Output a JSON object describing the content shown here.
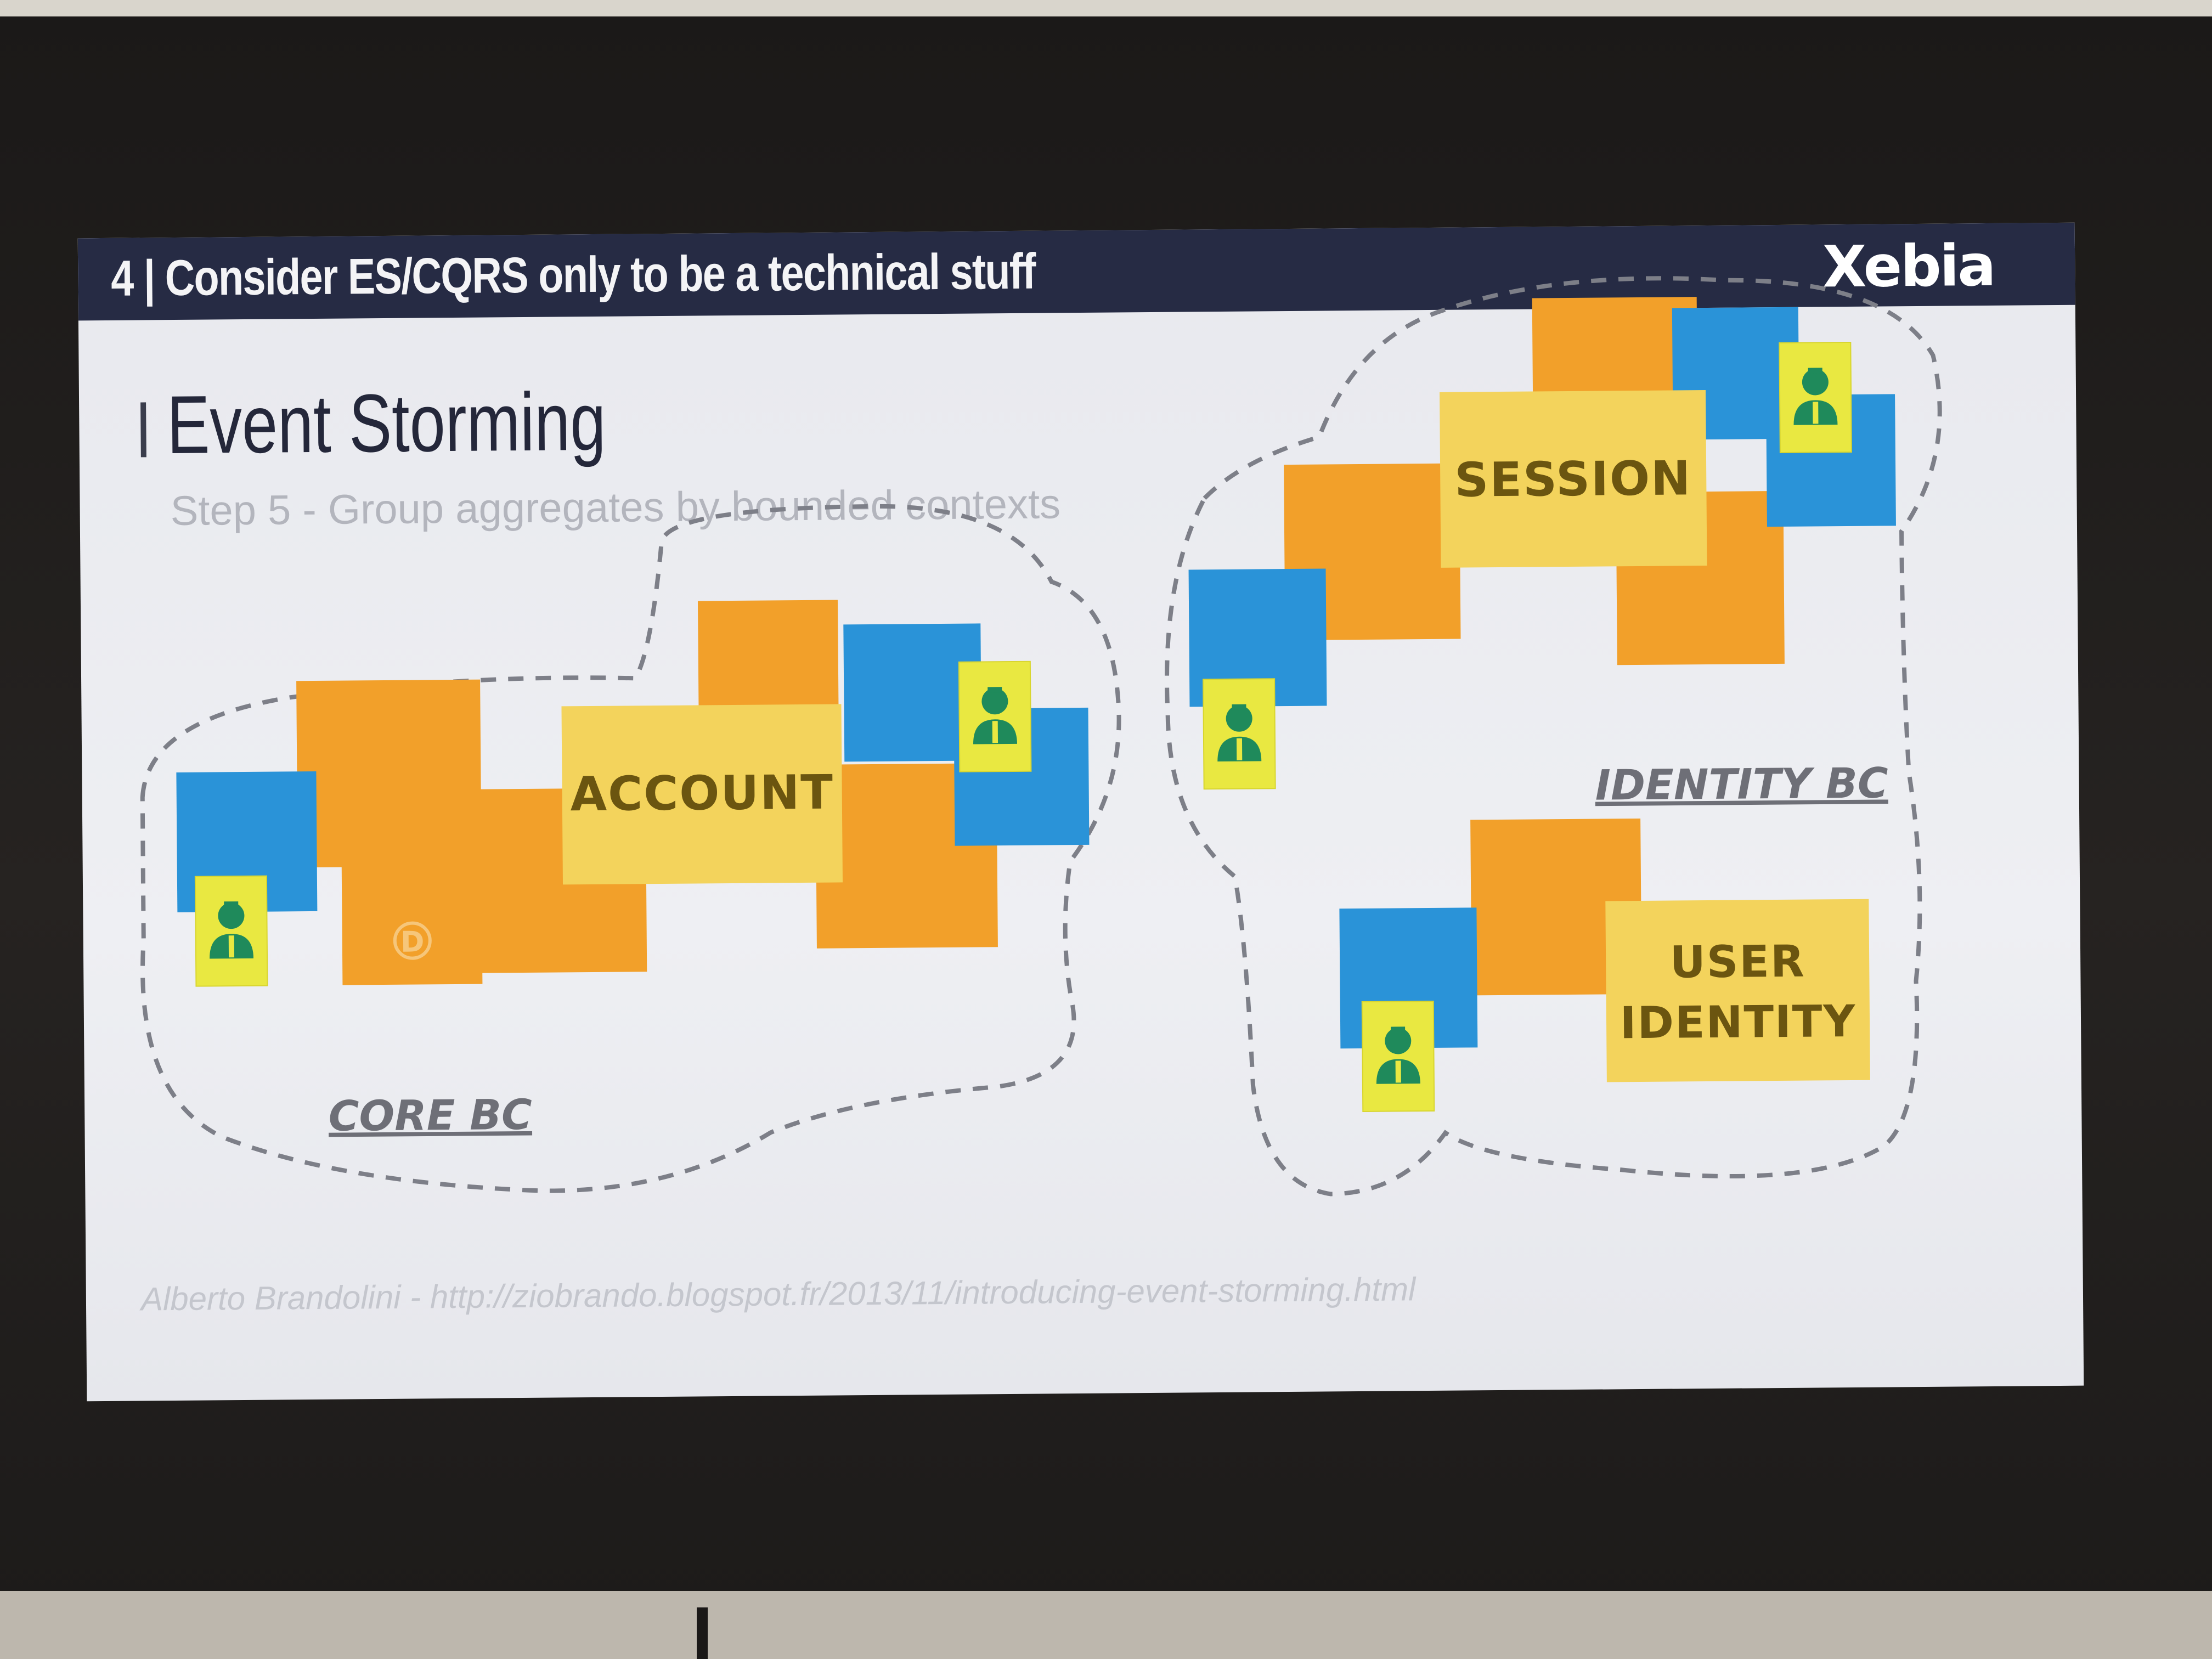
{
  "slide": {
    "header_title": "4 | Consider ES/CQRS only to be a technical stuff",
    "logo_text": "Xebia",
    "title": "Event Storming",
    "subtitle": "Step 5 - Group aggregates by bounded contexts",
    "credit": "Alberto Brandolini - http://ziobrando.blogspot.fr/2013/11/introducing-event-storming.html"
  },
  "diagram": {
    "aggregates": {
      "account": "ACCOUNT",
      "session": "SESSION",
      "user_identity_line1": "USER",
      "user_identity_line2": "IDENTITY"
    },
    "bounded_contexts": {
      "core": "CORE BC",
      "identity": "IDENTITY BC"
    }
  },
  "colors": {
    "header_bar": "#262b44",
    "event_orange": "#f2a02a",
    "command_blue": "#2a93d8",
    "aggregate_yellow": "#f3d35c",
    "actor_yellow": "#e9e841",
    "actor_green": "#1f8a5b",
    "boundary_gray": "#7d7f88"
  },
  "icons": {
    "actor": "person-icon",
    "small_marker": "circled-d-icon"
  }
}
